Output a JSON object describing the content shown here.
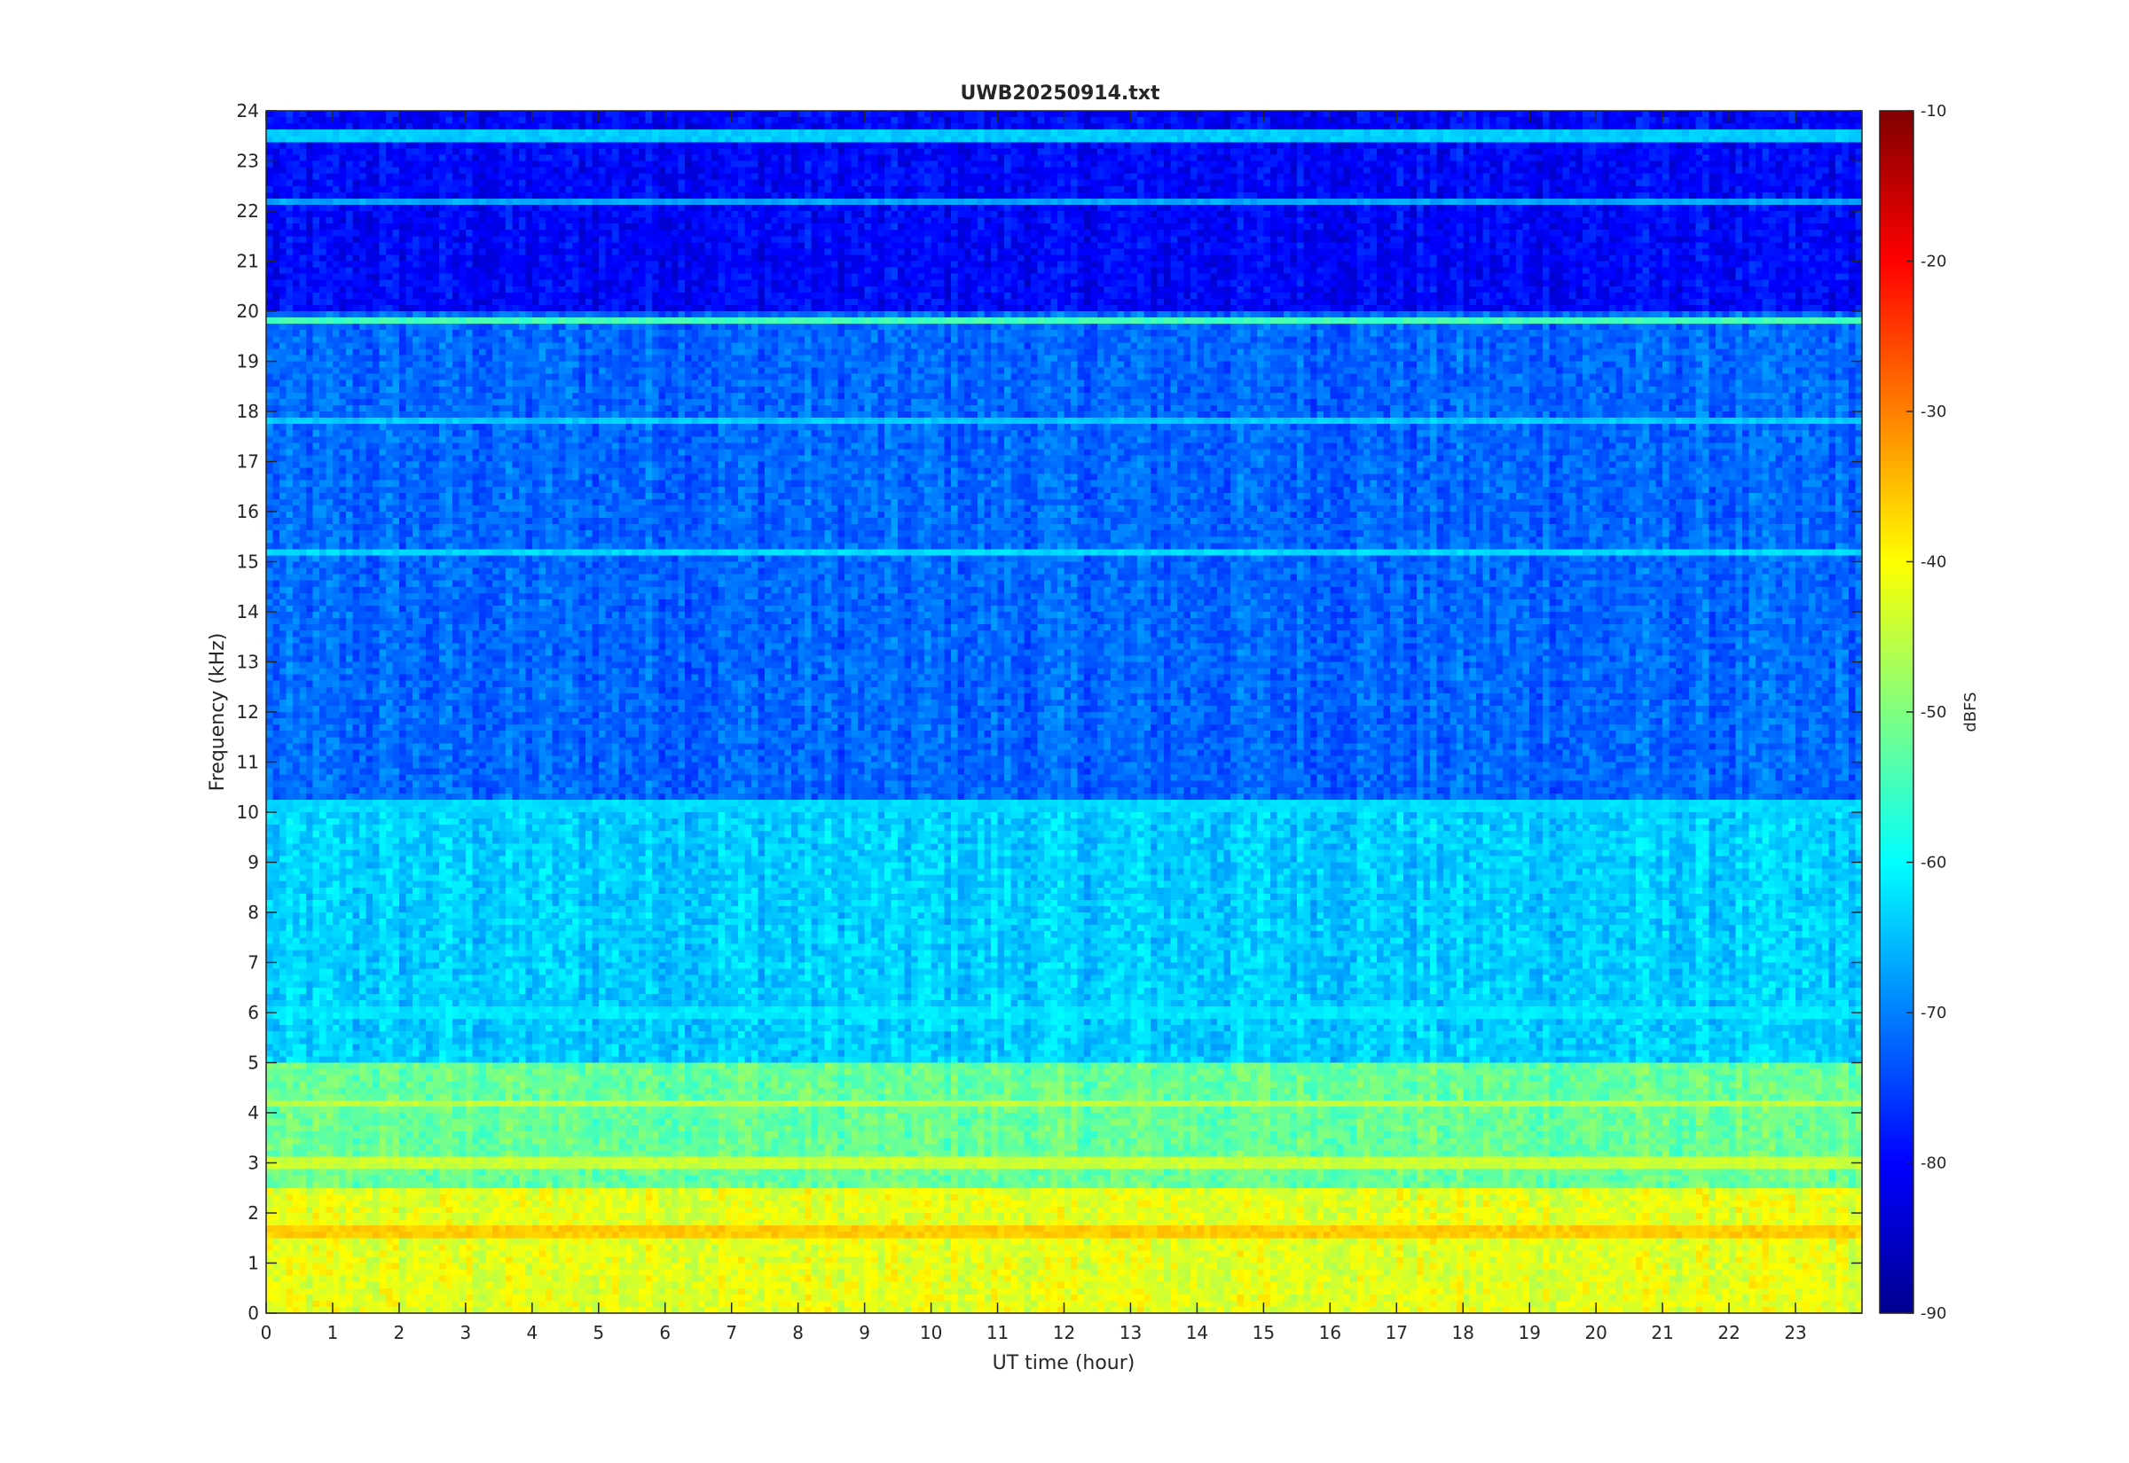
{
  "chart_data": {
    "type": "heatmap",
    "title": "UWB20250914.txt",
    "xlabel": "UT time (hour)",
    "ylabel": "Frequency (kHz)",
    "colorbar_label": "dBFS",
    "xlim": [
      0,
      24
    ],
    "ylim": [
      0,
      24
    ],
    "clim": [
      -90,
      -10
    ],
    "x_ticks": [
      0,
      1,
      2,
      3,
      4,
      5,
      6,
      7,
      8,
      9,
      10,
      11,
      12,
      13,
      14,
      15,
      16,
      17,
      18,
      19,
      20,
      21,
      22,
      23
    ],
    "y_ticks": [
      0,
      1,
      2,
      3,
      4,
      5,
      6,
      7,
      8,
      9,
      10,
      11,
      12,
      13,
      14,
      15,
      16,
      17,
      18,
      19,
      20,
      21,
      22,
      23,
      24
    ],
    "colorbar_ticks": [
      -10,
      -20,
      -30,
      -40,
      -50,
      -60,
      -70,
      -80,
      -90
    ],
    "colormap": "jet",
    "grid": false,
    "approx_background_level_dBFS": [
      {
        "freq_range_kHz": [
          0,
          2.5
        ],
        "level": -42
      },
      {
        "freq_range_kHz": [
          2.5,
          5
        ],
        "level": -52
      },
      {
        "freq_range_kHz": [
          5,
          10
        ],
        "level": -64
      },
      {
        "freq_range_kHz": [
          10,
          20
        ],
        "level": -72
      },
      {
        "freq_range_kHz": [
          20,
          24
        ],
        "level": -80
      }
    ],
    "persistent_tones_kHz": [
      {
        "freq": 23.5,
        "level": -64
      },
      {
        "freq": 22.2,
        "level": -67
      },
      {
        "freq": 19.8,
        "level": -55
      },
      {
        "freq": 17.8,
        "level": -64
      },
      {
        "freq": 15.2,
        "level": -63
      },
      {
        "freq": 10.1,
        "level": -63
      },
      {
        "freq": 6.0,
        "level": -62
      },
      {
        "freq": 4.2,
        "level": -45
      },
      {
        "freq": 3.0,
        "level": -44
      },
      {
        "freq": 1.6,
        "level": -36
      }
    ]
  }
}
